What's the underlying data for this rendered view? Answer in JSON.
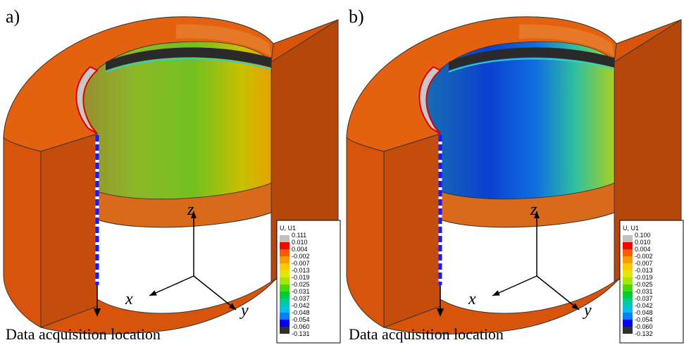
{
  "panels": [
    {
      "label": "a)",
      "caption": "Data acquisition location",
      "axes": {
        "x": "x",
        "y": "y",
        "z": "z"
      },
      "legend": {
        "title": "U, U1",
        "values": [
          "0.111",
          "0.010",
          "0.004",
          "-0.002",
          "-0.007",
          "-0.013",
          "-0.019",
          "-0.025",
          "-0.031",
          "-0.037",
          "-0.042",
          "-0.048",
          "-0.054",
          "-0.060",
          "-0.131"
        ]
      }
    },
    {
      "label": "b)",
      "caption": "Data acquisition location",
      "axes": {
        "x": "x",
        "y": "y",
        "z": "z"
      },
      "legend": {
        "title": "U, U1",
        "values": [
          "0.100",
          "0.010",
          "0.004",
          "-0.002",
          "-0.007",
          "-0.013",
          "-0.019",
          "-0.025",
          "-0.031",
          "-0.037",
          "-0.042",
          "-0.048",
          "-0.054",
          "-0.060",
          "-0.132"
        ]
      }
    }
  ]
}
